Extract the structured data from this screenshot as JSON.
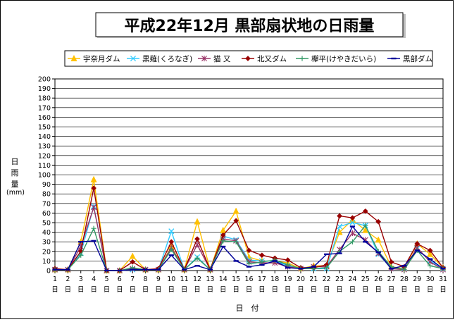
{
  "chart_data": {
    "type": "line",
    "title": "平成22年12月  黒部扇状地の日雨量",
    "ylabel_chars": [
      "日",
      "雨",
      "量"
    ],
    "ylabel_unit": "(mm)",
    "xlabel_chars": [
      "日",
      "付"
    ],
    "x_suffix": "日",
    "ylim": [
      0,
      200
    ],
    "ytick_step": 10,
    "grid": "horizontal",
    "legend_position": "top",
    "x": [
      1,
      2,
      3,
      4,
      5,
      6,
      7,
      8,
      9,
      10,
      11,
      12,
      13,
      14,
      15,
      16,
      17,
      18,
      19,
      20,
      21,
      22,
      23,
      24,
      25,
      26,
      27,
      28,
      29,
      30,
      31
    ],
    "series": [
      {
        "name": "宇奈月ダム",
        "color": "#FFC000",
        "marker": "triangle",
        "values": [
          1,
          1,
          30,
          95,
          0,
          0,
          15,
          1,
          1,
          25,
          1,
          51,
          1,
          42,
          62,
          14,
          10,
          10,
          8,
          2,
          5,
          5,
          40,
          53,
          42,
          32,
          4,
          2,
          28,
          17,
          3
        ]
      },
      {
        "name": "黒薙(くろなぎ)",
        "color": "#33CCFF",
        "marker": "x",
        "values": [
          1,
          1,
          18,
          67,
          0,
          0,
          1,
          1,
          1,
          41,
          1,
          14,
          1,
          36,
          32,
          11,
          10,
          10,
          5,
          2,
          2,
          2,
          46,
          50,
          47,
          17,
          2,
          2,
          23,
          10,
          2
        ]
      },
      {
        "name": "猫 又",
        "color": "#993366",
        "marker": "star",
        "values": [
          1,
          1,
          25,
          66,
          0,
          0,
          2,
          1,
          1,
          24,
          1,
          27,
          1,
          33,
          31,
          9,
          8,
          8,
          4,
          2,
          4,
          4,
          22,
          39,
          32,
          18,
          2,
          1,
          24,
          9,
          1
        ]
      },
      {
        "name": "北又ダム",
        "color": "#990000",
        "marker": "diamond",
        "values": [
          2,
          1,
          20,
          86,
          0,
          0,
          9,
          1,
          2,
          30,
          1,
          33,
          1,
          37,
          52,
          21,
          16,
          13,
          11,
          3,
          3,
          6,
          57,
          55,
          62,
          51,
          9,
          4,
          28,
          21,
          3
        ]
      },
      {
        "name": "欅平(けやきだいら)",
        "color": "#339966",
        "marker": "plus",
        "values": [
          1,
          1,
          16,
          44,
          0,
          0,
          3,
          1,
          1,
          22,
          1,
          13,
          1,
          31,
          30,
          7,
          9,
          11,
          6,
          2,
          2,
          3,
          20,
          30,
          47,
          20,
          4,
          1,
          21,
          5,
          2
        ]
      },
      {
        "name": "黒部ダム",
        "color": "#000099",
        "marker": "dash",
        "values": [
          1,
          1,
          30,
          31,
          0,
          0,
          1,
          1,
          1,
          16,
          1,
          5,
          1,
          25,
          10,
          4,
          6,
          10,
          3,
          2,
          4,
          17,
          18,
          46,
          30,
          19,
          2,
          5,
          21,
          12,
          2
        ]
      }
    ]
  }
}
